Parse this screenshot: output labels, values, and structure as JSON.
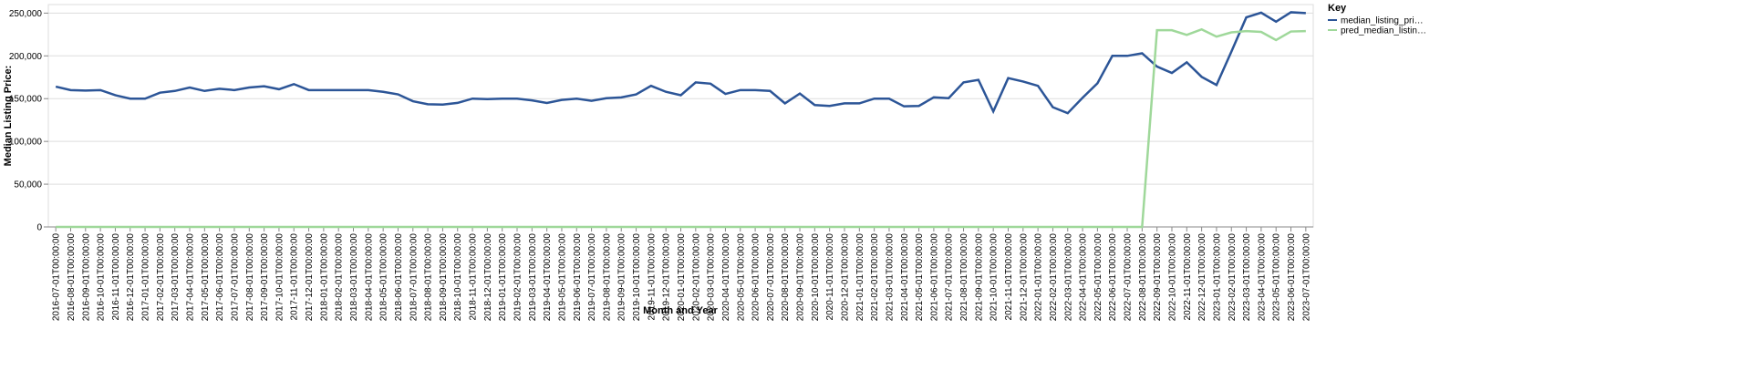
{
  "chart_data": {
    "type": "line",
    "x_label": "Month and Year",
    "y_label": "Median Listing Price:",
    "legend_title": "Key",
    "legend_position": "right",
    "grid": true,
    "categories": [
      "2016-07-01T00:00:00",
      "2016-08-01T00:00:00",
      "2016-09-01T00:00:00",
      "2016-10-01T00:00:00",
      "2016-11-01T00:00:00",
      "2016-12-01T00:00:00",
      "2017-01-01T00:00:00",
      "2017-02-01T00:00:00",
      "2017-03-01T00:00:00",
      "2017-04-01T00:00:00",
      "2017-05-01T00:00:00",
      "2017-06-01T00:00:00",
      "2017-07-01T00:00:00",
      "2017-08-01T00:00:00",
      "2017-09-01T00:00:00",
      "2017-10-01T00:00:00",
      "2017-11-01T00:00:00",
      "2017-12-01T00:00:00",
      "2018-01-01T00:00:00",
      "2018-02-01T00:00:00",
      "2018-03-01T00:00:00",
      "2018-04-01T00:00:00",
      "2018-05-01T00:00:00",
      "2018-06-01T00:00:00",
      "2018-07-01T00:00:00",
      "2018-08-01T00:00:00",
      "2018-09-01T00:00:00",
      "2018-10-01T00:00:00",
      "2018-11-01T00:00:00",
      "2018-12-01T00:00:00",
      "2019-01-01T00:00:00",
      "2019-02-01T00:00:00",
      "2019-03-01T00:00:00",
      "2019-04-01T00:00:00",
      "2019-05-01T00:00:00",
      "2019-06-01T00:00:00",
      "2019-07-01T00:00:00",
      "2019-08-01T00:00:00",
      "2019-09-01T00:00:00",
      "2019-10-01T00:00:00",
      "2019-11-01T00:00:00",
      "2019-12-01T00:00:00",
      "2020-01-01T00:00:00",
      "2020-02-01T00:00:00",
      "2020-03-01T00:00:00",
      "2020-04-01T00:00:00",
      "2020-05-01T00:00:00",
      "2020-06-01T00:00:00",
      "2020-07-01T00:00:00",
      "2020-08-01T00:00:00",
      "2020-09-01T00:00:00",
      "2020-10-01T00:00:00",
      "2020-11-01T00:00:00",
      "2020-12-01T00:00:00",
      "2021-01-01T00:00:00",
      "2021-02-01T00:00:00",
      "2021-03-01T00:00:00",
      "2021-04-01T00:00:00",
      "2021-05-01T00:00:00",
      "2021-06-01T00:00:00",
      "2021-07-01T00:00:00",
      "2021-08-01T00:00:00",
      "2021-09-01T00:00:00",
      "2021-10-01T00:00:00",
      "2021-11-01T00:00:00",
      "2021-12-01T00:00:00",
      "2022-01-01T00:00:00",
      "2022-02-01T00:00:00",
      "2022-03-01T00:00:00",
      "2022-04-01T00:00:00",
      "2022-05-01T00:00:00",
      "2022-06-01T00:00:00",
      "2022-07-01T00:00:00",
      "2022-08-01T00:00:00",
      "2022-09-01T00:00:00",
      "2022-10-01T00:00:00",
      "2022-11-01T00:00:00",
      "2022-12-01T00:00:00",
      "2023-01-01T00:00:00",
      "2023-02-01T00:00:00",
      "2023-03-01T00:00:00",
      "2023-04-01T00:00:00",
      "2023-05-01T00:00:00",
      "2023-06-01T00:00:00",
      "2023-07-01T00:00:00"
    ],
    "series": [
      {
        "name": "median_listing_pri…",
        "color": "#2c5597",
        "values": [
          164000,
          160000,
          159500,
          160000,
          154000,
          150000,
          150000,
          157000,
          159000,
          163000,
          159000,
          161500,
          160000,
          163000,
          164500,
          161000,
          167000,
          160000,
          160000,
          160000,
          160000,
          160000,
          158000,
          155000,
          147000,
          143500,
          143000,
          145000,
          150000,
          149500,
          150000,
          150000,
          148000,
          145000,
          148500,
          150000,
          147500,
          150500,
          151500,
          155000,
          165000,
          158000,
          154000,
          169000,
          167500,
          155500,
          160000,
          160000,
          159000,
          144500,
          156000,
          142500,
          141500,
          144500,
          144500,
          150000,
          150000,
          141000,
          141500,
          151500,
          150500,
          169000,
          172000,
          135000,
          174000,
          170000,
          165000,
          140000,
          133000,
          151000,
          168000,
          200000,
          200000,
          203000,
          187500,
          180000,
          192500,
          175500,
          166000,
          205000,
          245000,
          250500,
          240000,
          251000,
          250000
        ]
      },
      {
        "name": "pred_median_listin…",
        "color": "#9fd89a",
        "values": [
          0,
          0,
          0,
          0,
          0,
          0,
          0,
          0,
          0,
          0,
          0,
          0,
          0,
          0,
          0,
          0,
          0,
          0,
          0,
          0,
          0,
          0,
          0,
          0,
          0,
          0,
          0,
          0,
          0,
          0,
          0,
          0,
          0,
          0,
          0,
          0,
          0,
          0,
          0,
          0,
          0,
          0,
          0,
          0,
          0,
          0,
          0,
          0,
          0,
          0,
          0,
          0,
          0,
          0,
          0,
          0,
          0,
          0,
          0,
          0,
          0,
          0,
          0,
          0,
          0,
          0,
          0,
          0,
          0,
          0,
          0,
          0,
          0,
          0,
          230000,
          230000,
          224500,
          231000,
          222500,
          227500,
          229000,
          228000,
          218500,
          228500,
          229000
        ]
      }
    ],
    "ylim": [
      0,
      260000
    ],
    "yticks": [
      0,
      {
        "value": 50000,
        "label": "50,000"
      },
      {
        "value": 100000,
        "label": "100,000"
      },
      {
        "value": 150000,
        "label": "150,000"
      },
      {
        "value": 200000,
        "label": "200,000"
      },
      {
        "value": 250000,
        "label": "250,000"
      }
    ]
  }
}
